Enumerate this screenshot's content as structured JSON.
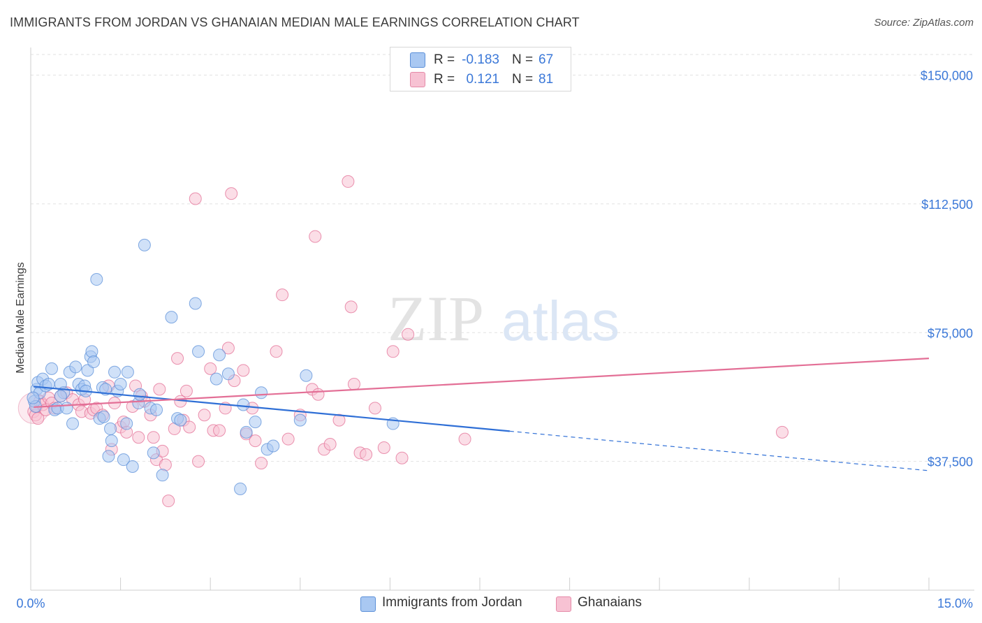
{
  "header": {
    "title": "IMMIGRANTS FROM JORDAN VS GHANAIAN MEDIAN MALE EARNINGS CORRELATION CHART",
    "source": "Source: ZipAtlas.com"
  },
  "watermark": {
    "zip": "ZIP",
    "atlas": "atlas"
  },
  "legend_top": {
    "rows": [
      {
        "r_label": "R =",
        "r_value": "-0.183",
        "n_label": "N =",
        "n_value": "67",
        "color": "#a9c8f2",
        "stroke": "#5b8fd8"
      },
      {
        "r_label": "R =",
        "r_value": "0.121",
        "n_label": "N =",
        "n_value": "81",
        "color": "#f7c2d3",
        "stroke": "#e58aa8"
      }
    ]
  },
  "legend_bottom": {
    "items": [
      {
        "label": "Immigrants from Jordan",
        "color": "#a9c8f2",
        "stroke": "#5b8fd8"
      },
      {
        "label": "Ghanaians",
        "color": "#f7c2d3",
        "stroke": "#e58aa8"
      }
    ]
  },
  "chart_data": {
    "type": "scatter",
    "title": "IMMIGRANTS FROM JORDAN VS GHANAIAN MEDIAN MALE EARNINGS CORRELATION CHART",
    "xlabel": "",
    "ylabel": "Median Male Earnings",
    "xlim": [
      0,
      15
    ],
    "ylim": [
      0,
      156000
    ],
    "x_tick_labels": [
      "0.0%",
      "15.0%"
    ],
    "y_ticks": [
      37500,
      75000,
      112500,
      150000
    ],
    "y_tick_labels": [
      "$37,500",
      "$75,000",
      "$112,500",
      "$150,000"
    ],
    "grid": true,
    "legend_position": "top-center",
    "series": [
      {
        "name": "Immigrants from Jordan",
        "color": "#5b8fd8",
        "fill": "#a9c8f2",
        "trend": {
          "x0": 0.05,
          "y0": 59300,
          "x1": 8.0,
          "y1": 46300,
          "dash_to_x": 15.0,
          "dash_to_y": 34800
        },
        "points": [
          [
            0.06,
            55000
          ],
          [
            0.08,
            53500
          ],
          [
            0.1,
            58500
          ],
          [
            0.12,
            60500
          ],
          [
            0.15,
            57500
          ],
          [
            0.2,
            61500
          ],
          [
            0.25,
            59500
          ],
          [
            0.3,
            60000
          ],
          [
            0.35,
            64500
          ],
          [
            0.4,
            52500
          ],
          [
            0.45,
            53000
          ],
          [
            0.5,
            60000
          ],
          [
            0.55,
            57500
          ],
          [
            0.6,
            53000
          ],
          [
            0.65,
            63500
          ],
          [
            0.7,
            48500
          ],
          [
            0.75,
            65000
          ],
          [
            0.8,
            60000
          ],
          [
            0.85,
            58500
          ],
          [
            0.9,
            59500
          ],
          [
            0.95,
            64000
          ],
          [
            1.0,
            68000
          ],
          [
            1.02,
            69500
          ],
          [
            1.05,
            66500
          ],
          [
            1.1,
            90500
          ],
          [
            1.15,
            50000
          ],
          [
            1.2,
            59000
          ],
          [
            1.22,
            50500
          ],
          [
            1.25,
            58500
          ],
          [
            1.3,
            39000
          ],
          [
            1.33,
            47000
          ],
          [
            1.35,
            43500
          ],
          [
            1.4,
            63500
          ],
          [
            1.45,
            58000
          ],
          [
            1.5,
            60000
          ],
          [
            1.55,
            38000
          ],
          [
            1.6,
            48500
          ],
          [
            1.62,
            63500
          ],
          [
            1.7,
            36000
          ],
          [
            1.8,
            54500
          ],
          [
            1.82,
            57000
          ],
          [
            1.9,
            100500
          ],
          [
            2.0,
            53000
          ],
          [
            2.05,
            40000
          ],
          [
            2.1,
            52500
          ],
          [
            2.2,
            33500
          ],
          [
            2.35,
            79500
          ],
          [
            2.45,
            50000
          ],
          [
            2.5,
            49500
          ],
          [
            2.75,
            83500
          ],
          [
            2.8,
            69500
          ],
          [
            3.1,
            61500
          ],
          [
            3.15,
            68500
          ],
          [
            3.3,
            63000
          ],
          [
            3.5,
            29500
          ],
          [
            3.55,
            54000
          ],
          [
            3.6,
            46000
          ],
          [
            3.75,
            49000
          ],
          [
            3.85,
            57500
          ],
          [
            3.95,
            41000
          ],
          [
            4.05,
            42000
          ],
          [
            4.5,
            49500
          ],
          [
            4.6,
            62500
          ],
          [
            6.05,
            48500
          ],
          [
            0.04,
            56000
          ],
          [
            0.5,
            56500
          ],
          [
            0.92,
            58000
          ]
        ]
      },
      {
        "name": "Ghanaians",
        "color": "#e36f96",
        "fill": "#f7c2d3",
        "trend": {
          "x0": 0.05,
          "y0": 53300,
          "x1": 15.0,
          "y1": 67500
        },
        "points": [
          [
            0.05,
            52000
          ],
          [
            0.08,
            51000
          ],
          [
            0.1,
            53500
          ],
          [
            0.15,
            55000
          ],
          [
            0.2,
            54000
          ],
          [
            0.25,
            52500
          ],
          [
            0.3,
            56000
          ],
          [
            0.35,
            54500
          ],
          [
            0.4,
            53000
          ],
          [
            0.5,
            56500
          ],
          [
            0.6,
            57500
          ],
          [
            0.7,
            55500
          ],
          [
            0.8,
            54000
          ],
          [
            0.85,
            52000
          ],
          [
            0.9,
            55500
          ],
          [
            1.0,
            51500
          ],
          [
            1.05,
            52500
          ],
          [
            1.1,
            53000
          ],
          [
            1.2,
            51000
          ],
          [
            1.3,
            59500
          ],
          [
            1.35,
            41000
          ],
          [
            1.4,
            54500
          ],
          [
            1.5,
            47500
          ],
          [
            1.55,
            49000
          ],
          [
            1.6,
            46000
          ],
          [
            1.7,
            53500
          ],
          [
            1.75,
            59500
          ],
          [
            1.8,
            44500
          ],
          [
            1.85,
            56500
          ],
          [
            1.9,
            55000
          ],
          [
            2.0,
            51000
          ],
          [
            2.05,
            44500
          ],
          [
            2.1,
            38000
          ],
          [
            2.15,
            58500
          ],
          [
            2.2,
            40500
          ],
          [
            2.25,
            36500
          ],
          [
            2.3,
            26000
          ],
          [
            2.4,
            47000
          ],
          [
            2.45,
            67500
          ],
          [
            2.5,
            55000
          ],
          [
            2.55,
            49500
          ],
          [
            2.6,
            58000
          ],
          [
            2.65,
            47500
          ],
          [
            2.75,
            114000
          ],
          [
            2.8,
            37500
          ],
          [
            2.9,
            51000
          ],
          [
            3.0,
            64500
          ],
          [
            3.05,
            46500
          ],
          [
            3.15,
            46500
          ],
          [
            3.25,
            53000
          ],
          [
            3.3,
            70500
          ],
          [
            3.35,
            115500
          ],
          [
            3.4,
            61000
          ],
          [
            3.55,
            64000
          ],
          [
            3.6,
            45500
          ],
          [
            3.7,
            53000
          ],
          [
            3.75,
            43500
          ],
          [
            3.85,
            37000
          ],
          [
            4.1,
            69500
          ],
          [
            4.2,
            86000
          ],
          [
            4.3,
            44000
          ],
          [
            4.5,
            51000
          ],
          [
            4.7,
            58500
          ],
          [
            4.75,
            103000
          ],
          [
            4.8,
            57000
          ],
          [
            4.9,
            41000
          ],
          [
            5.0,
            42500
          ],
          [
            5.15,
            49500
          ],
          [
            5.3,
            119000
          ],
          [
            5.35,
            82500
          ],
          [
            5.4,
            60000
          ],
          [
            5.5,
            40000
          ],
          [
            5.6,
            39500
          ],
          [
            5.75,
            53000
          ],
          [
            5.9,
            41500
          ],
          [
            6.05,
            69500
          ],
          [
            6.2,
            38500
          ],
          [
            6.3,
            74500
          ],
          [
            7.25,
            44000
          ],
          [
            12.55,
            46000
          ],
          [
            0.12,
            50000
          ]
        ]
      }
    ]
  }
}
